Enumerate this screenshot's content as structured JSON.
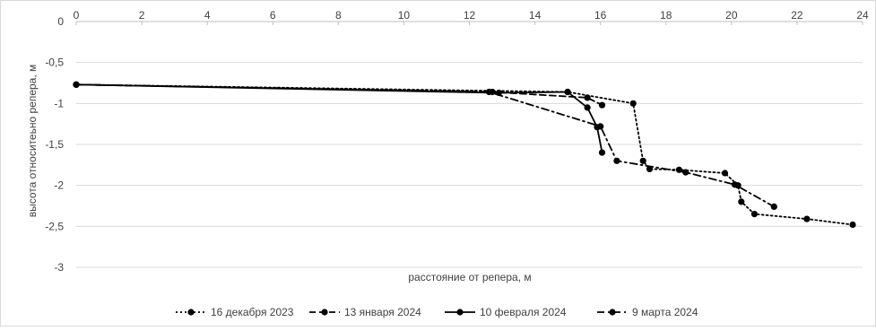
{
  "chart_data": {
    "type": "line",
    "title": "",
    "xlabel": "расстояние от репера, м",
    "ylabel": "высота относитеьно репера, м",
    "xlim": [
      0,
      24
    ],
    "ylim": [
      -3,
      0
    ],
    "x_ticks": [
      "0",
      "2",
      "4",
      "6",
      "8",
      "10",
      "12",
      "14",
      "16",
      "18",
      "20",
      "22",
      "24"
    ],
    "y_ticks": [
      "0",
      "-0,5",
      "-1",
      "-1,5",
      "-2",
      "-2,5",
      "-3"
    ],
    "y_tick_values": [
      0,
      -0.5,
      -1,
      -1.5,
      -2,
      -2.5,
      -3
    ],
    "grid": "horizontal",
    "legend_position": "bottom",
    "series": [
      {
        "name": "16 декабря 2023",
        "dash": "dotted",
        "points": [
          [
            0,
            -0.77
          ],
          [
            15.0,
            -0.86
          ],
          [
            17.0,
            -1.0
          ],
          [
            17.3,
            -1.7
          ],
          [
            17.5,
            -1.8
          ],
          [
            18.4,
            -1.81
          ],
          [
            19.8,
            -1.85
          ],
          [
            20.2,
            -2.0
          ],
          [
            20.3,
            -2.2
          ],
          [
            20.7,
            -2.35
          ],
          [
            22.3,
            -2.41
          ],
          [
            23.7,
            -2.48
          ]
        ]
      },
      {
        "name": "13 января 2024",
        "dash": "dashed",
        "points": [
          [
            0,
            -0.77
          ],
          [
            12.7,
            -0.86
          ],
          [
            15.6,
            -0.93
          ],
          [
            16.05,
            -1.02
          ]
        ]
      },
      {
        "name": "10 февраля 2024",
        "dash": "solid",
        "points": [
          [
            0,
            -0.77
          ],
          [
            12.9,
            -0.87
          ],
          [
            15.0,
            -0.86
          ],
          [
            15.6,
            -1.05
          ],
          [
            15.9,
            -1.29
          ],
          [
            16.05,
            -1.6
          ]
        ]
      },
      {
        "name": "9 марта 2024",
        "dash": "dashdot",
        "points": [
          [
            0,
            -0.77
          ],
          [
            12.6,
            -0.86
          ],
          [
            16.0,
            -1.28
          ],
          [
            16.5,
            -1.7
          ],
          [
            18.6,
            -1.84
          ],
          [
            20.1,
            -1.99
          ],
          [
            21.3,
            -2.26
          ]
        ]
      }
    ]
  }
}
